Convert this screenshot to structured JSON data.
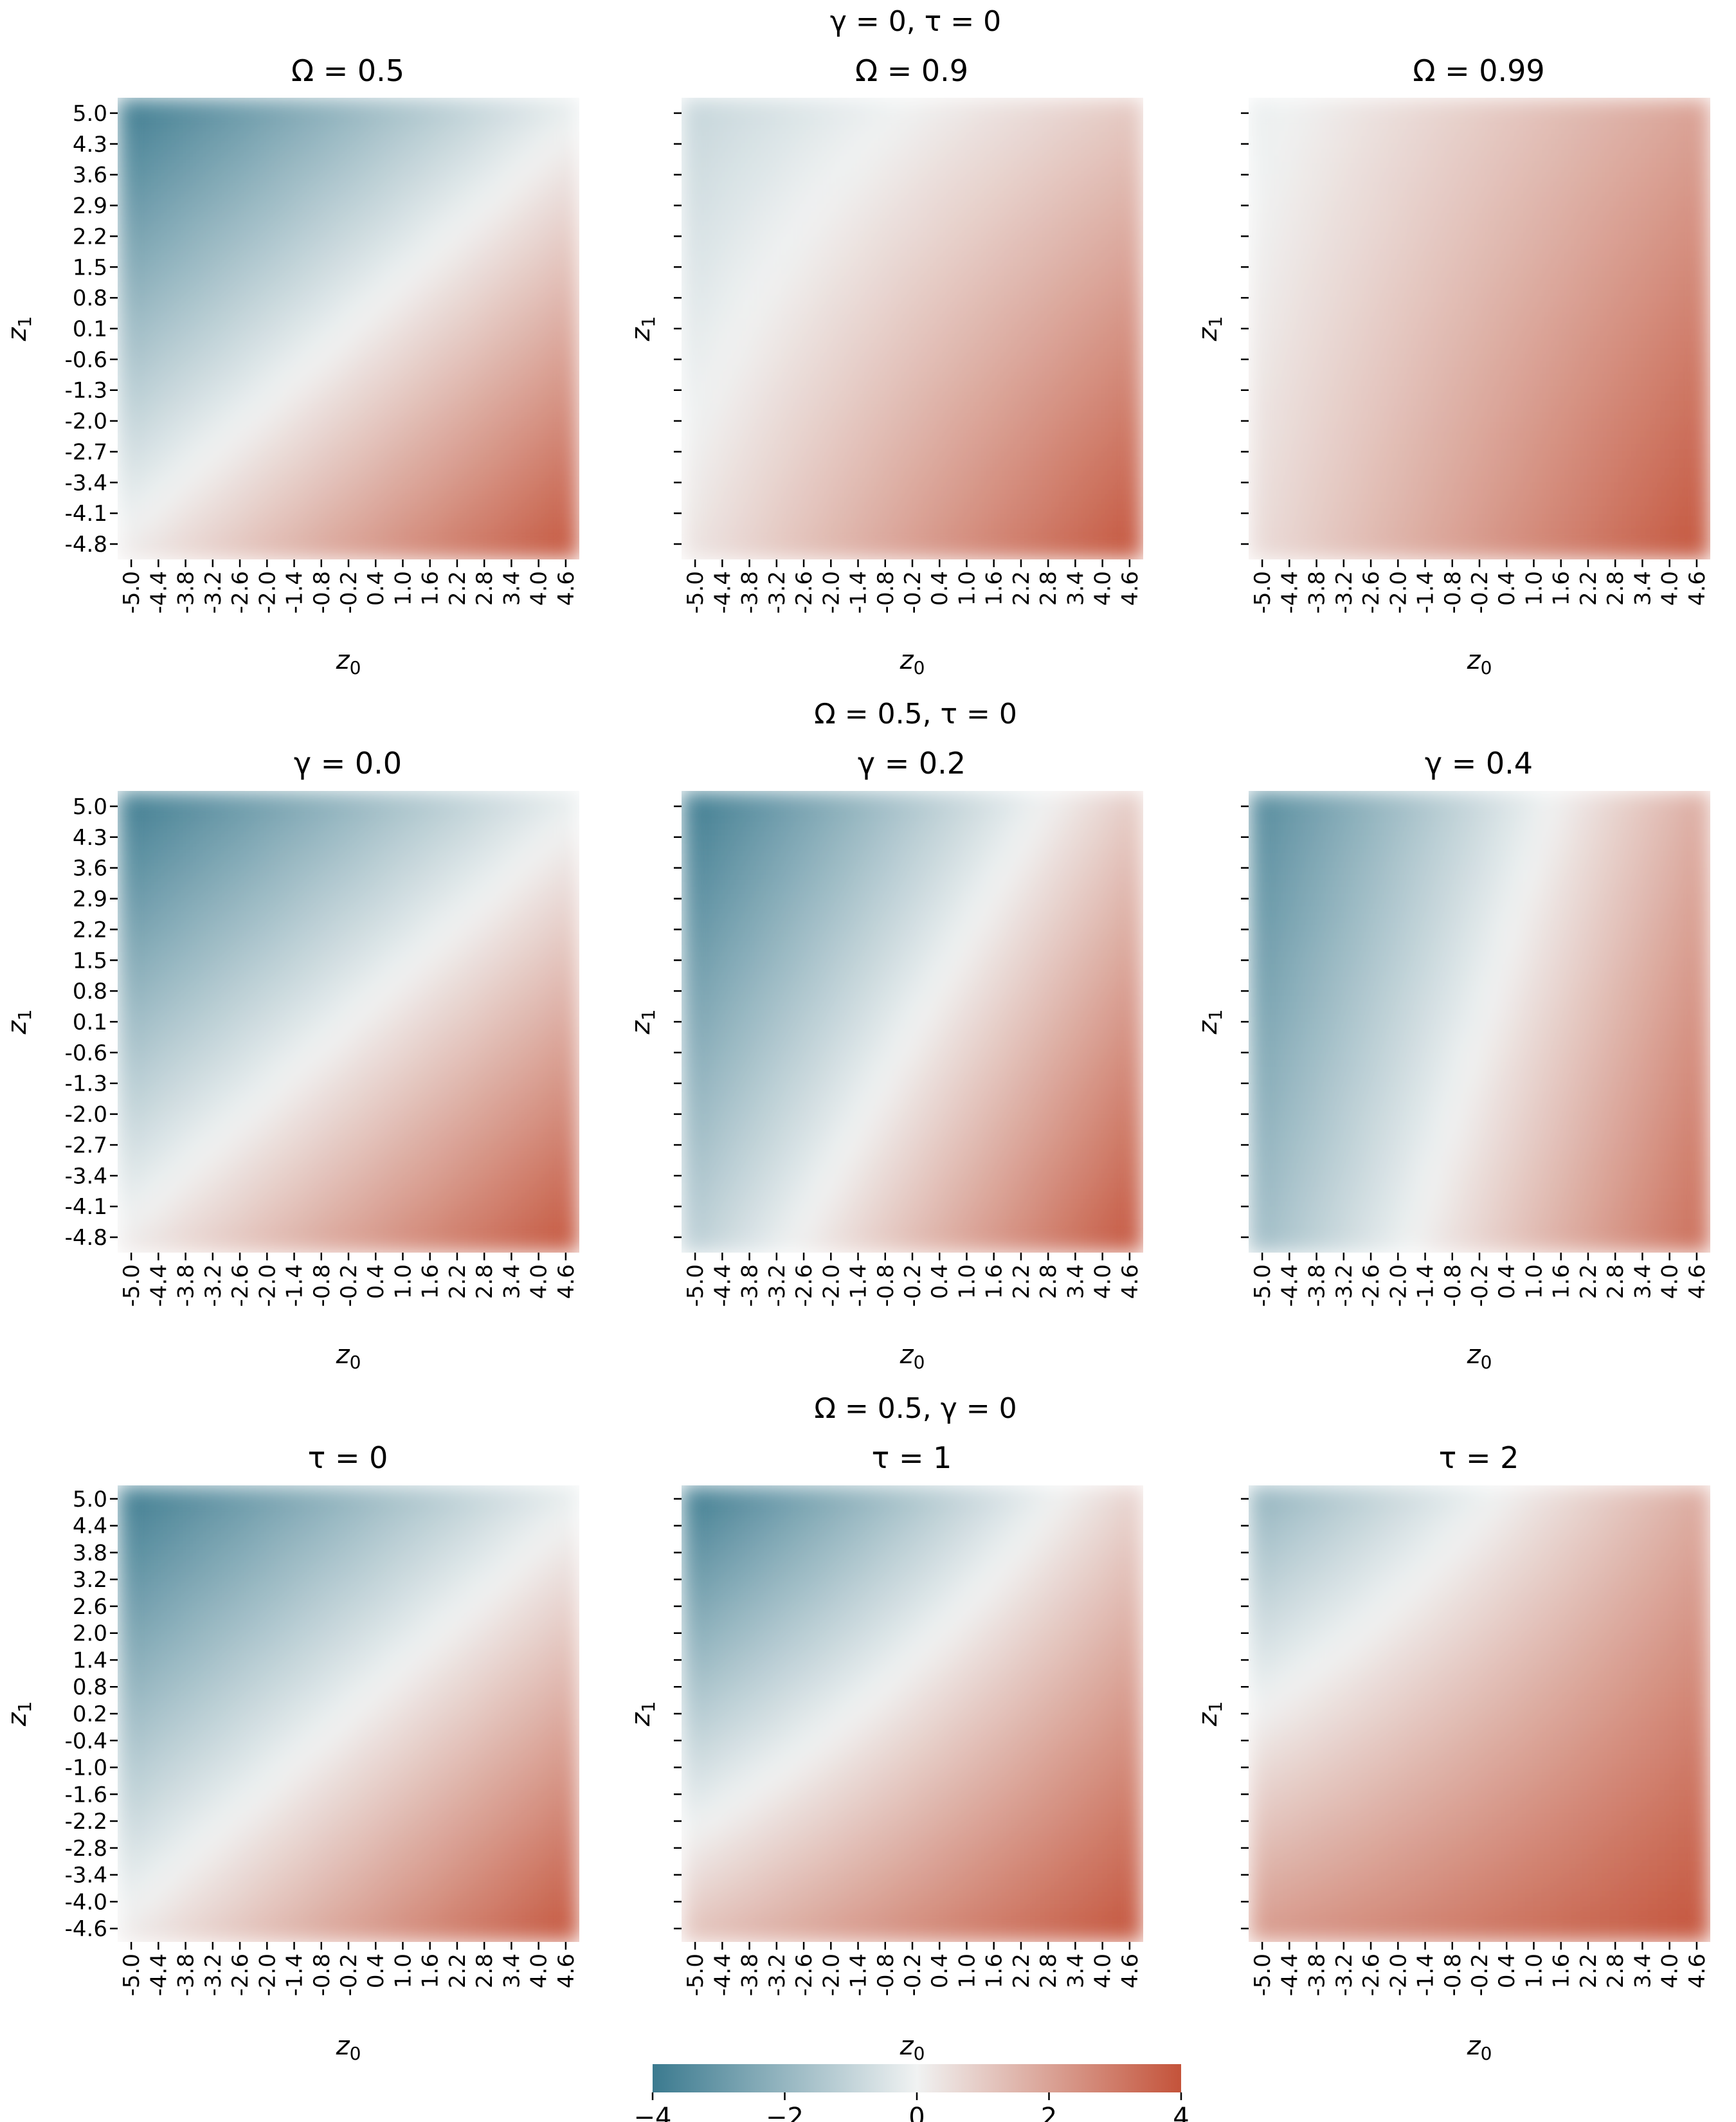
{
  "figure": {
    "row_titles": [
      "γ = 0, τ = 0",
      "Ω = 0.5, τ = 0",
      "Ω = 0.5, γ = 0"
    ],
    "x_axis_label": "z",
    "x_axis_sub": "0",
    "y_axis_label": "z",
    "y_axis_sub": "1"
  },
  "chart_data": [
    {
      "type": "heatmap",
      "title": "Ω = 0.5",
      "xlabel": "z0",
      "ylabel": "z1",
      "omega": 0.5,
      "gamma": 0,
      "tau": 0,
      "x_ticks": [
        "-5.0",
        "-4.4",
        "-3.8",
        "-3.2",
        "-2.6",
        "-2.0",
        "-1.4",
        "-0.8",
        "-0.2",
        "0.4",
        "1.0",
        "1.6",
        "2.2",
        "2.8",
        "3.4",
        "4.0",
        "4.6"
      ],
      "y_ticks": [
        "5.0",
        "4.3",
        "3.6",
        "2.9",
        "2.2",
        "1.5",
        "0.8",
        "0.1",
        "-0.6",
        "-1.3",
        "-2.0",
        "-2.7",
        "-3.4",
        "-4.1",
        "-4.8"
      ],
      "show_y_labels": true,
      "corner_values": {
        "top_left": -4,
        "top_right": -0.2,
        "bottom_left": 0.2,
        "bottom_right": 4
      }
    },
    {
      "type": "heatmap",
      "title": "Ω = 0.9",
      "xlabel": "z0",
      "ylabel": "z1",
      "omega": 0.9,
      "gamma": 0,
      "tau": 0,
      "x_ticks": [
        "-5.0",
        "-4.4",
        "-3.8",
        "-3.2",
        "-2.6",
        "-2.0",
        "-1.4",
        "-0.8",
        "-0.2",
        "0.4",
        "1.0",
        "1.6",
        "2.2",
        "2.8",
        "3.4",
        "4.0",
        "4.6"
      ],
      "y_ticks": [
        "5.0",
        "4.3",
        "3.6",
        "2.9",
        "2.2",
        "1.5",
        "0.8",
        "0.1",
        "-0.6",
        "-1.3",
        "-2.0",
        "-2.7",
        "-3.4",
        "-4.1",
        "-4.8"
      ],
      "show_y_labels": false,
      "corner_values": {
        "top_left": -1,
        "top_right": 1,
        "bottom_left": 0.3,
        "bottom_right": 4
      }
    },
    {
      "type": "heatmap",
      "title": "Ω = 0.99",
      "xlabel": "z0",
      "ylabel": "z1",
      "omega": 0.99,
      "gamma": 0,
      "tau": 0,
      "x_ticks": [
        "-5.0",
        "-4.4",
        "-3.8",
        "-3.2",
        "-2.6",
        "-2.0",
        "-1.4",
        "-0.8",
        "-0.2",
        "0.4",
        "1.0",
        "1.6",
        "2.2",
        "2.8",
        "3.4",
        "4.0",
        "4.6"
      ],
      "y_ticks": [
        "5.0",
        "4.3",
        "3.6",
        "2.9",
        "2.2",
        "1.5",
        "0.8",
        "0.1",
        "-0.6",
        "-1.3",
        "-2.0",
        "-2.7",
        "-3.4",
        "-4.1",
        "-4.8"
      ],
      "show_y_labels": false,
      "corner_values": {
        "top_left": -0.2,
        "top_right": 2,
        "bottom_left": 0.5,
        "bottom_right": 4
      }
    },
    {
      "type": "heatmap",
      "title": "γ = 0.0",
      "xlabel": "z0",
      "ylabel": "z1",
      "omega": 0.5,
      "gamma": 0.0,
      "tau": 0,
      "x_ticks": [
        "-5.0",
        "-4.4",
        "-3.8",
        "-3.2",
        "-2.6",
        "-2.0",
        "-1.4",
        "-0.8",
        "-0.2",
        "0.4",
        "1.0",
        "1.6",
        "2.2",
        "2.8",
        "3.4",
        "4.0",
        "4.6"
      ],
      "y_ticks": [
        "5.0",
        "4.3",
        "3.6",
        "2.9",
        "2.2",
        "1.5",
        "0.8",
        "0.1",
        "-0.6",
        "-1.3",
        "-2.0",
        "-2.7",
        "-3.4",
        "-4.1",
        "-4.8"
      ],
      "show_y_labels": true,
      "corner_values": {
        "top_left": -4,
        "top_right": -0.2,
        "bottom_left": 0.2,
        "bottom_right": 4
      }
    },
    {
      "type": "heatmap",
      "title": "γ = 0.2",
      "xlabel": "z0",
      "ylabel": "z1",
      "omega": 0.5,
      "gamma": 0.2,
      "tau": 0,
      "x_ticks": [
        "-5.0",
        "-4.4",
        "-3.8",
        "-3.2",
        "-2.6",
        "-2.0",
        "-1.4",
        "-0.8",
        "-0.2",
        "0.4",
        "1.0",
        "1.6",
        "2.2",
        "2.8",
        "3.4",
        "4.0",
        "4.6"
      ],
      "y_ticks": [
        "5.0",
        "4.3",
        "3.6",
        "2.9",
        "2.2",
        "1.5",
        "0.8",
        "0.1",
        "-0.6",
        "-1.3",
        "-2.0",
        "-2.7",
        "-3.4",
        "-4.1",
        "-4.8"
      ],
      "show_y_labels": false,
      "corner_values": {
        "top_left": -4,
        "top_right": 1,
        "bottom_left": -1.2,
        "bottom_right": 4
      }
    },
    {
      "type": "heatmap",
      "title": "γ = 0.4",
      "xlabel": "z0",
      "ylabel": "z1",
      "omega": 0.5,
      "gamma": 0.4,
      "tau": 0,
      "x_ticks": [
        "-5.0",
        "-4.4",
        "-3.8",
        "-3.2",
        "-2.6",
        "-2.0",
        "-1.4",
        "-0.8",
        "-0.2",
        "0.4",
        "1.0",
        "1.6",
        "2.2",
        "2.8",
        "3.4",
        "4.0",
        "4.6"
      ],
      "y_ticks": [
        "5.0",
        "4.3",
        "3.6",
        "2.9",
        "2.2",
        "1.5",
        "0.8",
        "0.1",
        "-0.6",
        "-1.3",
        "-2.0",
        "-2.7",
        "-3.4",
        "-4.1",
        "-4.8"
      ],
      "show_y_labels": false,
      "corner_values": {
        "top_left": -3.5,
        "top_right": 1.8,
        "bottom_left": -1.8,
        "bottom_right": 3.4
      }
    },
    {
      "type": "heatmap",
      "title": "τ = 0",
      "xlabel": "z0",
      "ylabel": "z1",
      "omega": 0.5,
      "gamma": 0,
      "tau": 0,
      "x_ticks": [
        "-5.0",
        "-4.4",
        "-3.8",
        "-3.2",
        "-2.6",
        "-2.0",
        "-1.4",
        "-0.8",
        "-0.2",
        "0.4",
        "1.0",
        "1.6",
        "2.2",
        "2.8",
        "3.4",
        "4.0",
        "4.6"
      ],
      "y_ticks": [
        "5.0",
        "4.4",
        "3.8",
        "3.2",
        "2.6",
        "2.0",
        "1.4",
        "0.8",
        "0.2",
        "-0.4",
        "-1.0",
        "-1.6",
        "-2.2",
        "-2.8",
        "-3.4",
        "-4.0",
        "-4.6"
      ],
      "show_y_labels": true,
      "corner_values": {
        "top_left": -4,
        "top_right": -0.2,
        "bottom_left": 0.2,
        "bottom_right": 4
      }
    },
    {
      "type": "heatmap",
      "title": "τ = 1",
      "xlabel": "z0",
      "ylabel": "z1",
      "omega": 0.5,
      "gamma": 0,
      "tau": 1,
      "x_ticks": [
        "-5.0",
        "-4.4",
        "-3.8",
        "-3.2",
        "-2.6",
        "-2.0",
        "-1.4",
        "-0.8",
        "-0.2",
        "0.4",
        "1.0",
        "1.6",
        "2.2",
        "2.8",
        "3.4",
        "4.0",
        "4.6"
      ],
      "y_ticks": [
        "5.0",
        "4.4",
        "3.8",
        "3.2",
        "2.6",
        "2.0",
        "1.4",
        "0.8",
        "0.2",
        "-0.4",
        "-1.0",
        "-1.6",
        "-2.2",
        "-2.8",
        "-3.4",
        "-4.0",
        "-4.6"
      ],
      "show_y_labels": false,
      "corner_values": {
        "top_left": -4,
        "top_right": 0.8,
        "bottom_left": 1.2,
        "bottom_right": 4
      }
    },
    {
      "type": "heatmap",
      "title": "τ = 2",
      "xlabel": "z0",
      "ylabel": "z1",
      "omega": 0.5,
      "gamma": 0,
      "tau": 2,
      "x_ticks": [
        "-5.0",
        "-4.4",
        "-3.8",
        "-3.2",
        "-2.6",
        "-2.0",
        "-1.4",
        "-0.8",
        "-0.2",
        "0.4",
        "1.0",
        "1.6",
        "2.2",
        "2.8",
        "3.4",
        "4.0",
        "4.6"
      ],
      "y_ticks": [
        "5.0",
        "4.4",
        "3.8",
        "3.2",
        "2.6",
        "2.0",
        "1.4",
        "0.8",
        "0.2",
        "-0.4",
        "-1.0",
        "-1.6",
        "-2.2",
        "-2.8",
        "-3.4",
        "-4.0",
        "-4.6"
      ],
      "show_y_labels": false,
      "corner_values": {
        "top_left": -2.2,
        "top_right": 1.8,
        "bottom_left": 2.2,
        "bottom_right": 4
      }
    }
  ],
  "colorbar": {
    "ticks": [
      "−4",
      "−2",
      "0",
      "2",
      "4"
    ],
    "range": [
      -4,
      4
    ],
    "colors": {
      "low": "#3b7a8f",
      "mid": "#f0f2f2",
      "high": "#c4533a"
    }
  }
}
